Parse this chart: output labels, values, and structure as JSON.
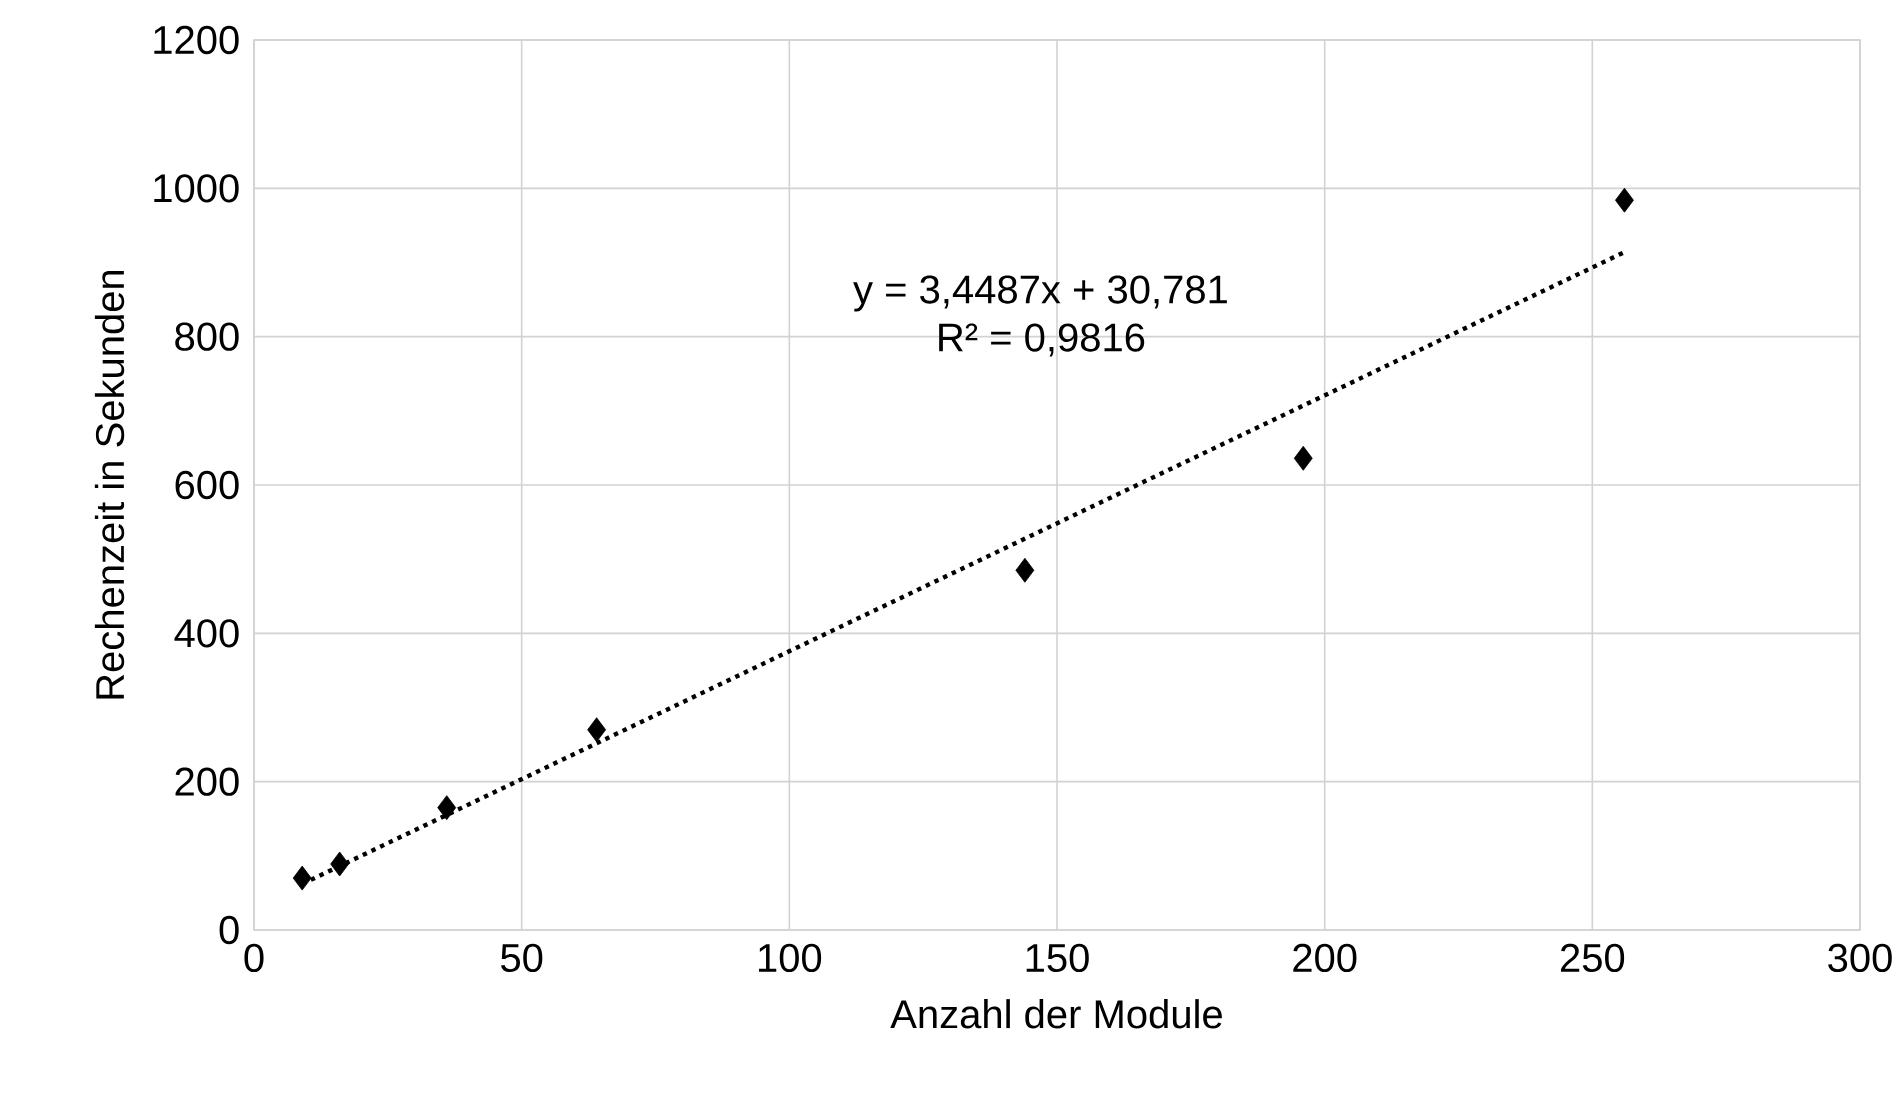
{
  "chart_data": {
    "type": "scatter",
    "xlabel": "Anzahl der Module",
    "ylabel": "Rechenzeit in Sekunden",
    "series": [
      {
        "color": "#000000",
        "marker": "diamond",
        "x": [
          9,
          16,
          36,
          64,
          144,
          196,
          256
        ],
        "values": [
          70,
          89,
          165,
          270,
          485,
          636,
          984
        ]
      },
      {
        "type": "line",
        "color": "#000000",
        "line_style": "dotted",
        "x": [
          9,
          256
        ],
        "values": [
          62,
          914
        ]
      }
    ],
    "annotations": [
      "y = 3,4487x + 30,781",
      "R² = 0,9816"
    ],
    "xlim": [
      0,
      300
    ],
    "ylim": [
      0,
      1200
    ],
    "xticks": [
      0,
      50,
      100,
      150,
      200,
      250,
      300
    ],
    "yticks": [
      0,
      200,
      400,
      600,
      800,
      1000,
      1200
    ],
    "grid": true
  }
}
